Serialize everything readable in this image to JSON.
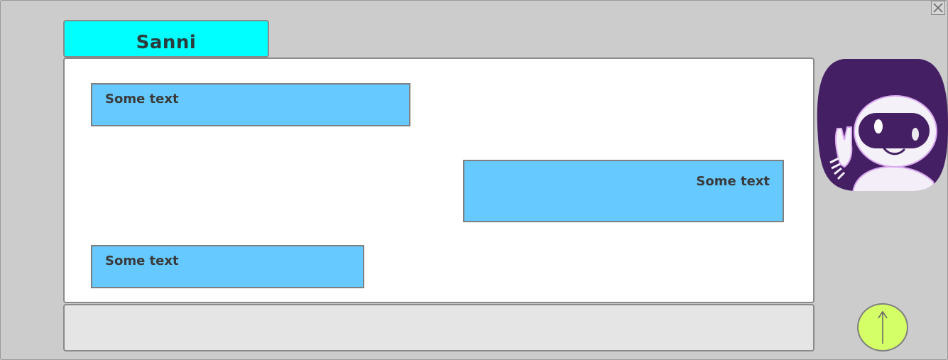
{
  "header": {
    "contact_name": "Sanni",
    "name_tab_color": "#00ffff"
  },
  "window": {
    "close_icon": "close-icon"
  },
  "messages": [
    {
      "text": "Some text",
      "side": "left"
    },
    {
      "text": "Some text",
      "side": "right"
    },
    {
      "text": "Some text",
      "side": "left"
    }
  ],
  "input": {
    "value": "",
    "placeholder": ""
  },
  "avatar": {
    "icon": "robot-waving-icon",
    "background_color": "#4a1f6b"
  },
  "send_button": {
    "icon": "arrow-up-icon",
    "color": "#d4ff66"
  },
  "colors": {
    "window_bg": "#cccccc",
    "bubble_bg": "#66c9ff",
    "chat_bg": "#ffffff",
    "input_bg": "#e5e5e5"
  }
}
